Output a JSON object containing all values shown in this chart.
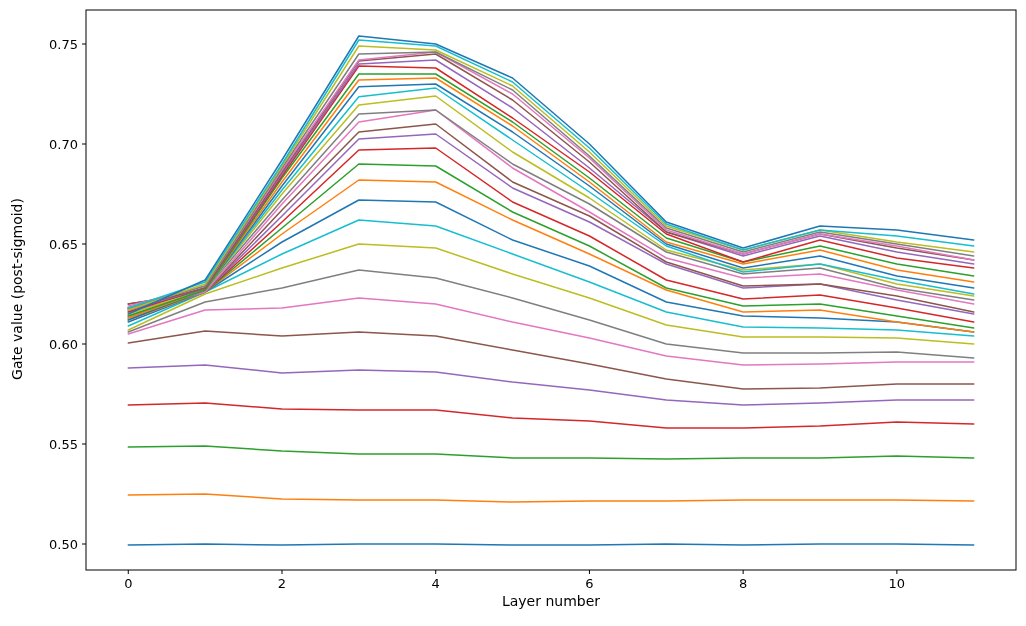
{
  "chart_data": {
    "type": "line",
    "xlabel": "Layer number",
    "ylabel": "Gate value (post-sigmoid)",
    "x": [
      0,
      1,
      2,
      3,
      4,
      5,
      6,
      7,
      8,
      9,
      10,
      11
    ],
    "xlim": [
      -0.55,
      11.55
    ],
    "ylim": [
      0.487,
      0.767
    ],
    "xticks": [
      0,
      2,
      4,
      6,
      8,
      10
    ],
    "yticks": [
      {
        "value": 0.5,
        "label": "0.50"
      },
      {
        "value": 0.55,
        "label": "0.55"
      },
      {
        "value": 0.6,
        "label": "0.60"
      },
      {
        "value": 0.65,
        "label": "0.65"
      },
      {
        "value": 0.7,
        "label": "0.70"
      },
      {
        "value": 0.75,
        "label": "0.75"
      }
    ],
    "grid": false,
    "marker": "none",
    "line_style": "solid",
    "series": [
      {
        "color": "#1f77b4",
        "values": [
          0.4995,
          0.5,
          0.4995,
          0.5,
          0.5,
          0.4995,
          0.4995,
          0.5,
          0.4995,
          0.5,
          0.5,
          0.4995
        ]
      },
      {
        "color": "#ff7f0e",
        "values": [
          0.5245,
          0.525,
          0.5225,
          0.522,
          0.522,
          0.521,
          0.5215,
          0.5215,
          0.522,
          0.522,
          0.522,
          0.5215
        ]
      },
      {
        "color": "#2ca02c",
        "values": [
          0.5485,
          0.549,
          0.5465,
          0.545,
          0.545,
          0.543,
          0.543,
          0.5425,
          0.543,
          0.543,
          0.544,
          0.543
        ]
      },
      {
        "color": "#d62728",
        "values": [
          0.5695,
          0.5705,
          0.5675,
          0.567,
          0.567,
          0.563,
          0.5615,
          0.558,
          0.558,
          0.559,
          0.561,
          0.56
        ]
      },
      {
        "color": "#9467bd",
        "values": [
          0.588,
          0.5895,
          0.5855,
          0.587,
          0.586,
          0.581,
          0.577,
          0.572,
          0.5695,
          0.5705,
          0.572,
          0.572
        ]
      },
      {
        "color": "#8c564b",
        "values": [
          0.6005,
          0.6065,
          0.604,
          0.606,
          0.604,
          0.597,
          0.59,
          0.5825,
          0.5775,
          0.578,
          0.58,
          0.58
        ]
      },
      {
        "color": "#e377c2",
        "values": [
          0.605,
          0.617,
          0.618,
          0.623,
          0.62,
          0.611,
          0.603,
          0.594,
          0.5895,
          0.59,
          0.591,
          0.591
        ]
      },
      {
        "color": "#7f7f7f",
        "values": [
          0.606,
          0.621,
          0.628,
          0.637,
          0.633,
          0.623,
          0.612,
          0.6,
          0.5955,
          0.5955,
          0.596,
          0.593
        ]
      },
      {
        "color": "#bcbd22",
        "values": [
          0.607,
          0.625,
          0.638,
          0.65,
          0.648,
          0.635,
          0.623,
          0.6095,
          0.6035,
          0.6035,
          0.603,
          0.6
        ]
      },
      {
        "color": "#17becf",
        "values": [
          0.609,
          0.626,
          0.645,
          0.662,
          0.659,
          0.645,
          0.631,
          0.616,
          0.6085,
          0.608,
          0.607,
          0.604
        ]
      },
      {
        "color": "#1f77b4",
        "values": [
          0.611,
          0.626,
          0.651,
          0.672,
          0.671,
          0.652,
          0.639,
          0.621,
          0.614,
          0.613,
          0.611,
          0.606
        ]
      },
      {
        "color": "#ff7f0e",
        "values": [
          0.612,
          0.626,
          0.655,
          0.682,
          0.681,
          0.662,
          0.645,
          0.627,
          0.616,
          0.617,
          0.611,
          0.606
        ]
      },
      {
        "color": "#2ca02c",
        "values": [
          0.613,
          0.626,
          0.658,
          0.69,
          0.689,
          0.666,
          0.649,
          0.628,
          0.619,
          0.62,
          0.614,
          0.608
        ]
      },
      {
        "color": "#d62728",
        "values": [
          0.62,
          0.626,
          0.661,
          0.697,
          0.698,
          0.671,
          0.654,
          0.632,
          0.6225,
          0.6245,
          0.618,
          0.611
        ]
      },
      {
        "color": "#9467bd",
        "values": [
          0.614,
          0.626,
          0.664,
          0.7025,
          0.705,
          0.678,
          0.661,
          0.64,
          0.628,
          0.63,
          0.622,
          0.615
        ]
      },
      {
        "color": "#8c564b",
        "values": [
          0.62,
          0.626,
          0.667,
          0.706,
          0.71,
          0.681,
          0.664,
          0.641,
          0.629,
          0.63,
          0.624,
          0.616
        ]
      },
      {
        "color": "#e377c2",
        "values": [
          0.616,
          0.626,
          0.67,
          0.711,
          0.717,
          0.688,
          0.666,
          0.643,
          0.633,
          0.635,
          0.627,
          0.62
        ]
      },
      {
        "color": "#7f7f7f",
        "values": [
          0.617,
          0.627,
          0.672,
          0.715,
          0.717,
          0.69,
          0.67,
          0.646,
          0.635,
          0.638,
          0.628,
          0.622
        ]
      },
      {
        "color": "#bcbd22",
        "values": [
          0.615,
          0.627,
          0.675,
          0.7195,
          0.724,
          0.696,
          0.673,
          0.647,
          0.637,
          0.64,
          0.63,
          0.624
        ]
      },
      {
        "color": "#17becf",
        "values": [
          0.618,
          0.627,
          0.677,
          0.7236,
          0.728,
          0.702,
          0.676,
          0.649,
          0.636,
          0.64,
          0.632,
          0.625
        ]
      },
      {
        "color": "#1f77b4",
        "values": [
          0.612,
          0.627,
          0.679,
          0.7286,
          0.73,
          0.706,
          0.679,
          0.65,
          0.638,
          0.644,
          0.634,
          0.628
        ]
      },
      {
        "color": "#ff7f0e",
        "values": [
          0.613,
          0.627,
          0.681,
          0.732,
          0.733,
          0.709,
          0.681,
          0.651,
          0.64,
          0.647,
          0.637,
          0.631
        ]
      },
      {
        "color": "#2ca02c",
        "values": [
          0.614,
          0.627,
          0.683,
          0.735,
          0.735,
          0.711,
          0.683,
          0.653,
          0.641,
          0.649,
          0.64,
          0.634
        ]
      },
      {
        "color": "#d62728",
        "values": [
          0.616,
          0.628,
          0.684,
          0.739,
          0.738,
          0.713,
          0.686,
          0.655,
          0.641,
          0.652,
          0.643,
          0.638
        ]
      },
      {
        "color": "#9467bd",
        "values": [
          0.617,
          0.628,
          0.685,
          0.74,
          0.742,
          0.718,
          0.688,
          0.656,
          0.644,
          0.654,
          0.646,
          0.64
        ]
      },
      {
        "color": "#8c564b",
        "values": [
          0.618,
          0.628,
          0.686,
          0.7415,
          0.745,
          0.722,
          0.691,
          0.656,
          0.645,
          0.655,
          0.648,
          0.642
        ]
      },
      {
        "color": "#e377c2",
        "values": [
          0.619,
          0.629,
          0.687,
          0.742,
          0.746,
          0.725,
          0.693,
          0.657,
          0.645,
          0.655,
          0.649,
          0.642
        ]
      },
      {
        "color": "#7f7f7f",
        "values": [
          0.618,
          0.629,
          0.688,
          0.745,
          0.746,
          0.727,
          0.694,
          0.658,
          0.646,
          0.656,
          0.65,
          0.644
        ]
      },
      {
        "color": "#bcbd22",
        "values": [
          0.617,
          0.63,
          0.689,
          0.749,
          0.747,
          0.729,
          0.696,
          0.659,
          0.647,
          0.657,
          0.651,
          0.646
        ]
      },
      {
        "color": "#17becf",
        "values": [
          0.618,
          0.631,
          0.69,
          0.752,
          0.749,
          0.731,
          0.698,
          0.66,
          0.647,
          0.657,
          0.654,
          0.649
        ]
      },
      {
        "color": "#1f77b4",
        "values": [
          0.615,
          0.632,
          0.692,
          0.754,
          0.75,
          0.733,
          0.7,
          0.661,
          0.648,
          0.659,
          0.657,
          0.652
        ]
      }
    ]
  }
}
